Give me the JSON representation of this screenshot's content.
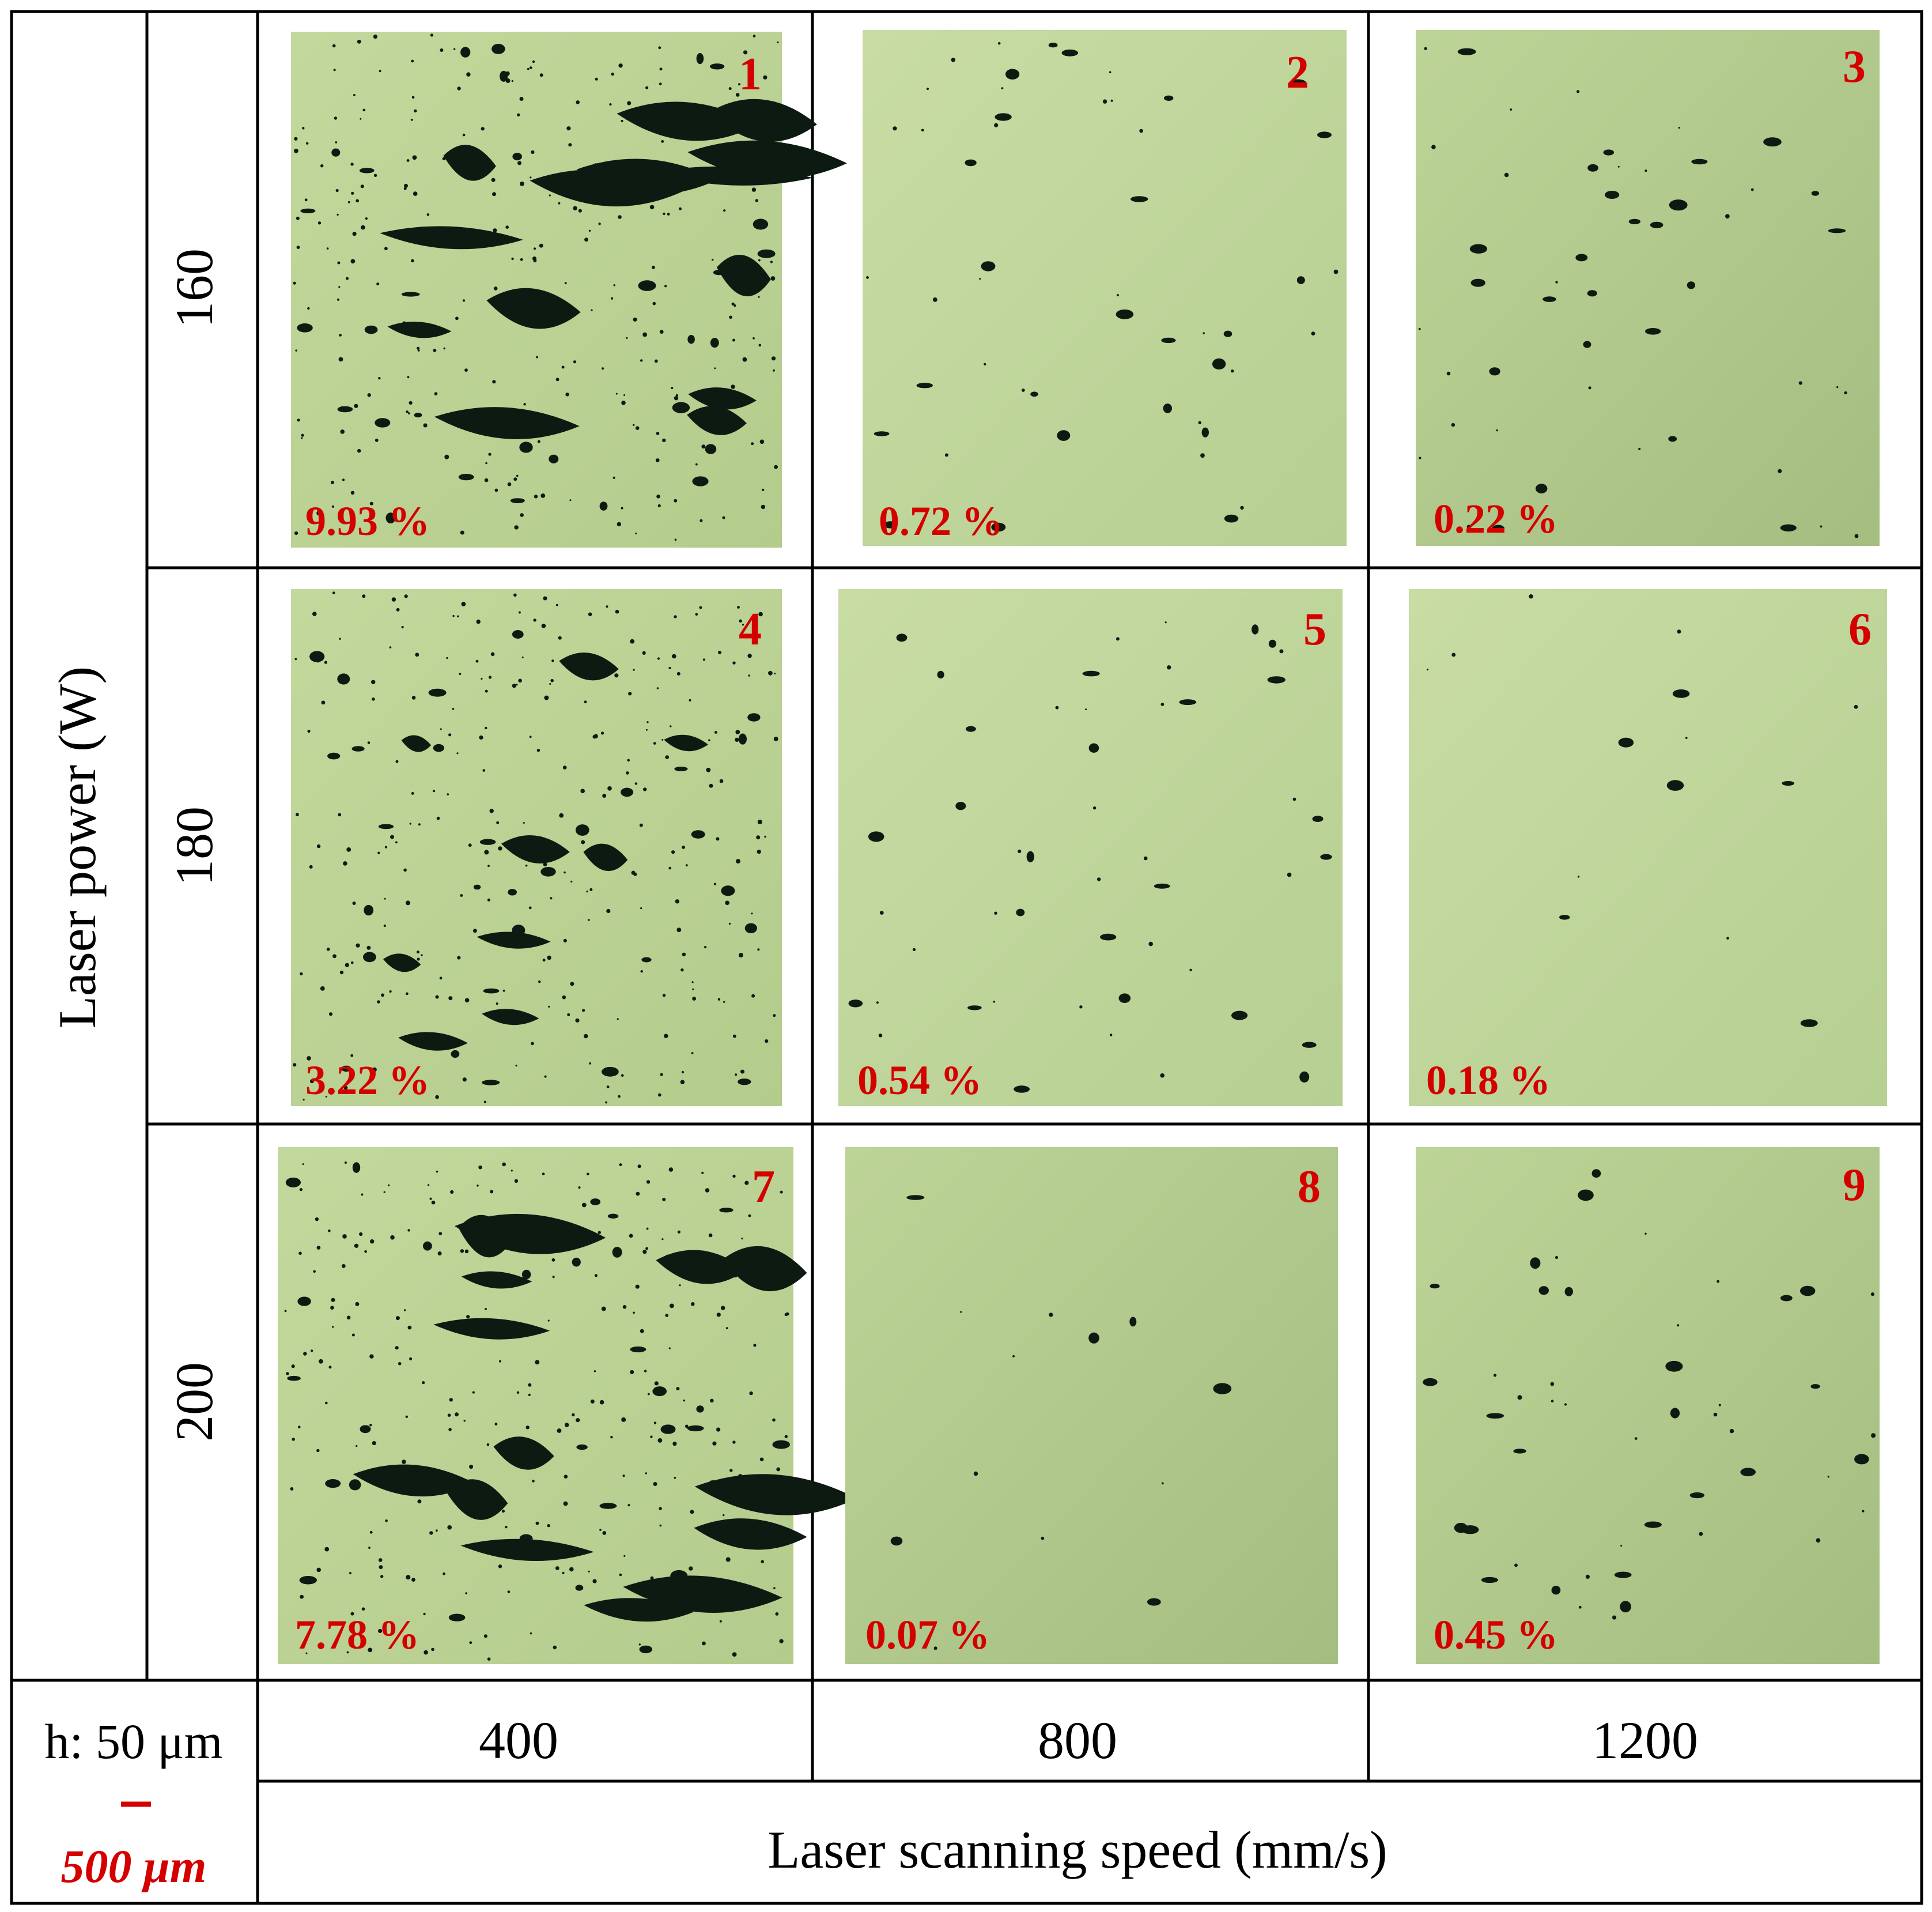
{
  "figure": {
    "row_axis_label": "Laser power (W)",
    "col_axis_label": "Laser scanning speed (mm/s)",
    "hatch_label": "h: 50 μm",
    "scale_bar_label": "500 μm",
    "rows": [
      {
        "power": "160"
      },
      {
        "power": "180"
      },
      {
        "power": "200"
      }
    ],
    "columns": [
      {
        "speed": "400"
      },
      {
        "speed": "800"
      },
      {
        "speed": "1200"
      }
    ],
    "panels": [
      {
        "number": "1",
        "porosity": "9.93 %"
      },
      {
        "number": "2",
        "porosity": "0.72 %"
      },
      {
        "number": "3",
        "porosity": "0.22 %"
      },
      {
        "number": "4",
        "porosity": "3.22 %"
      },
      {
        "number": "5",
        "porosity": "0.54 %"
      },
      {
        "number": "6",
        "porosity": "0.18 %"
      },
      {
        "number": "7",
        "porosity": "7.78 %"
      },
      {
        "number": "8",
        "porosity": "0.07 %"
      },
      {
        "number": "9",
        "porosity": "0.45 %"
      }
    ],
    "colors": {
      "grid_line": "#000000",
      "label_red": "#d40000",
      "micrograph_light": "#c6dba0",
      "micrograph_mid": "#bad293",
      "micrograph_dark": "#a6be82",
      "pore": "#0d1a12"
    }
  }
}
